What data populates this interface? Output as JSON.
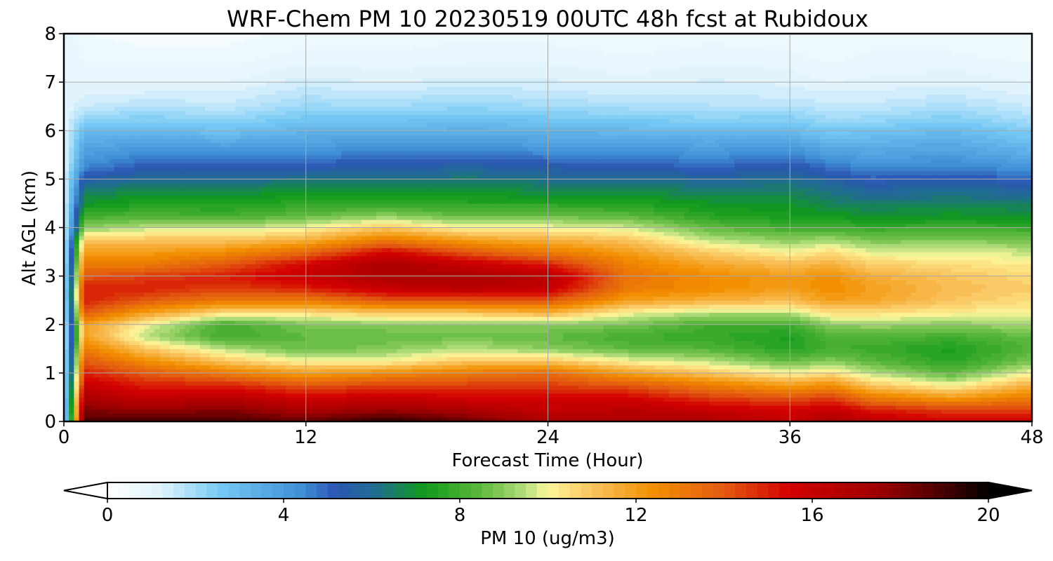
{
  "chart_data": {
    "type": "heatmap",
    "title": "WRF-Chem PM 10  20230519 00UTC 48h fcst at Rubidoux",
    "xlabel": "Forecast Time (Hour)",
    "ylabel": "Alt AGL (km)",
    "xlim": [
      0,
      48
    ],
    "ylim": [
      0,
      8
    ],
    "xticks": [
      "0",
      "12",
      "24",
      "36",
      "48"
    ],
    "yticks": [
      "0",
      "1",
      "2",
      "3",
      "4",
      "5",
      "6",
      "7",
      "8"
    ],
    "grid": true,
    "x_hours": [
      0,
      1,
      4,
      8,
      12,
      16,
      20,
      24,
      28,
      32,
      36,
      38,
      40,
      44,
      48
    ],
    "altitudes_km": [
      0,
      0.25,
      0.5,
      0.75,
      1.0,
      1.25,
      1.5,
      1.75,
      2.0,
      2.25,
      2.5,
      2.75,
      3.0,
      3.25,
      3.5,
      3.75,
      4.0,
      4.25,
      4.5,
      4.75,
      5.0,
      5.25,
      5.5,
      5.75,
      6.0,
      6.25,
      6.5,
      6.75,
      7.0,
      7.25,
      7.5,
      7.75,
      8.0
    ],
    "pm10_profiles": [
      [
        1,
        1,
        1,
        1,
        1,
        1,
        1,
        1,
        1,
        1,
        1,
        1,
        1,
        1,
        1,
        1,
        1,
        1,
        1,
        1,
        1,
        1,
        1,
        1,
        1,
        1,
        1,
        1,
        1,
        1,
        1,
        1,
        1
      ],
      [
        19,
        18,
        17,
        16,
        15,
        14,
        13,
        12,
        12,
        14,
        15,
        15,
        14,
        13,
        12,
        11,
        9,
        8,
        7,
        6.5,
        5.5,
        4.5,
        4,
        3.5,
        3,
        2.2,
        1.5,
        1.2,
        1,
        0.8,
        0.7,
        0.6,
        0.5
      ],
      [
        19,
        17.5,
        16,
        15,
        14,
        12.5,
        11,
        9.5,
        10,
        12,
        14,
        15,
        14.5,
        13,
        12,
        11,
        9.5,
        8.2,
        7.5,
        6.8,
        6,
        5.2,
        4.5,
        3.8,
        3,
        2.4,
        1.8,
        1.3,
        1,
        0.8,
        0.6,
        0.5,
        0.4
      ],
      [
        19,
        18,
        16.5,
        15,
        13,
        11,
        9.5,
        8,
        8,
        10.5,
        13,
        14.5,
        15,
        14,
        12.5,
        11,
        9.5,
        8,
        7.4,
        6.8,
        6,
        5.2,
        4.4,
        3.6,
        2.8,
        2.2,
        1.6,
        1.3,
        1,
        0.8,
        0.6,
        0.5,
        0.4
      ],
      [
        18.5,
        17,
        15.5,
        14,
        12,
        10,
        8.5,
        8.5,
        8.8,
        10.5,
        13,
        15,
        16,
        15.5,
        13.5,
        11.5,
        10,
        8.5,
        7.7,
        7,
        6.2,
        5.3,
        4.5,
        3.8,
        3.2,
        2.6,
        2.1,
        1.7,
        1.4,
        1.1,
        0.9,
        0.7,
        0.6
      ],
      [
        19.5,
        17.5,
        16,
        14.5,
        12.5,
        10,
        9,
        8.5,
        9,
        11,
        14,
        16,
        17,
        17,
        15.5,
        13,
        11,
        9,
        7.8,
        7,
        6.2,
        5.5,
        4.8,
        4,
        3.2,
        2.6,
        2,
        1.6,
        1.2,
        1,
        0.8,
        0.7,
        0.6
      ],
      [
        18.5,
        17,
        15.5,
        14.5,
        13,
        11,
        9.5,
        8.7,
        9,
        11,
        14,
        16.5,
        17,
        16,
        14,
        12,
        10,
        8.5,
        7.6,
        7,
        6.4,
        5.7,
        4.8,
        4,
        3.4,
        2.8,
        2.2,
        1.8,
        1.4,
        1.1,
        0.9,
        0.8,
        0.7
      ],
      [
        17,
        16,
        15.5,
        14.5,
        13.5,
        11,
        9,
        8.5,
        9,
        11.5,
        14,
        16,
        16.5,
        15,
        13,
        11.5,
        10,
        8.6,
        7.6,
        6.8,
        6.1,
        5.4,
        4.6,
        3.8,
        3.2,
        2.6,
        2,
        1.6,
        1.3,
        1.1,
        0.9,
        0.8,
        0.6
      ],
      [
        17,
        16.5,
        15.5,
        14,
        12,
        10,
        8.5,
        8,
        8.8,
        10,
        12,
        13,
        13.2,
        12.8,
        12,
        11,
        9.7,
        8.4,
        7.5,
        6.8,
        6.1,
        5.3,
        4.5,
        3.8,
        3.1,
        2.5,
        1.9,
        1.5,
        1.2,
        0.9,
        0.8,
        0.6,
        0.5
      ],
      [
        17,
        16,
        14.5,
        13,
        11,
        9.5,
        8.3,
        7.8,
        8,
        9.5,
        11.5,
        12.5,
        12.5,
        11.8,
        10.8,
        9.5,
        8.5,
        7.6,
        7.1,
        6.5,
        5.8,
        5,
        4.3,
        3.6,
        2.9,
        2.3,
        1.8,
        1.5,
        1.3,
        1.1,
        0.9,
        0.8,
        0.6
      ],
      [
        16,
        15.5,
        14,
        12,
        10,
        8.5,
        7.6,
        7.4,
        8,
        9.5,
        11.2,
        12,
        12,
        11.2,
        10,
        9,
        8,
        7.3,
        7,
        6.6,
        6,
        5.4,
        4.6,
        3.8,
        3,
        2.4,
        1.8,
        1.4,
        1.2,
        1,
        0.8,
        0.7,
        0.6
      ],
      [
        17,
        16,
        14.5,
        12.5,
        10.5,
        9,
        8,
        8.2,
        9,
        10.5,
        12,
        12.5,
        12.4,
        11.5,
        10.5,
        9.3,
        8,
        7.2,
        6.6,
        6.2,
        5.6,
        4.8,
        4,
        3.2,
        2.6,
        2,
        1.6,
        1.3,
        1,
        0.8,
        0.7,
        0.6,
        0.5
      ],
      [
        16.5,
        15,
        13,
        11,
        9.5,
        8.4,
        7.9,
        8.3,
        9.2,
        10.5,
        11.8,
        12,
        11.6,
        10.8,
        9.8,
        8.8,
        7.8,
        7,
        6.4,
        5.8,
        5.1,
        4.4,
        3.8,
        3.3,
        2.7,
        2.1,
        1.6,
        1.3,
        1.1,
        0.9,
        0.8,
        0.7,
        0.6
      ],
      [
        15.5,
        14.5,
        12,
        10,
        8.4,
        7.6,
        7.4,
        8,
        9,
        10.2,
        11,
        11.2,
        11,
        10.5,
        9.8,
        8.9,
        8,
        7.1,
        6.6,
        6,
        5.3,
        4.6,
        4,
        3.5,
        3,
        2.4,
        1.9,
        1.5,
        1.2,
        1,
        0.8,
        0.7,
        0.6
      ],
      [
        15.5,
        14.5,
        13,
        11.5,
        10,
        8.8,
        8.3,
        8.5,
        9.3,
        10,
        10.5,
        10.8,
        10.6,
        10.2,
        9.6,
        8.8,
        7.8,
        7,
        6.4,
        5.8,
        5,
        4.2,
        3.5,
        2.9,
        2.4,
        1.9,
        1.5,
        1.2,
        1,
        0.8,
        0.7,
        0.6,
        0.5
      ]
    ],
    "colorbar": {
      "label": "PM 10  (ug/m3)",
      "range": [
        0,
        20
      ],
      "ticks": [
        "0",
        "4",
        "8",
        "12",
        "16",
        "20"
      ],
      "extend": "both",
      "stops": [
        {
          "v": 0,
          "c": "#ffffff"
        },
        {
          "v": 1.2,
          "c": "#dff3fd"
        },
        {
          "v": 2.6,
          "c": "#74c8f4"
        },
        {
          "v": 4.4,
          "c": "#3f8fd6"
        },
        {
          "v": 5.2,
          "c": "#2c56b4"
        },
        {
          "v": 6.1,
          "c": "#1f6e8e"
        },
        {
          "v": 7.2,
          "c": "#109a1a"
        },
        {
          "v": 8.5,
          "c": "#60b93e"
        },
        {
          "v": 9.5,
          "c": "#b7df7e"
        },
        {
          "v": 10.0,
          "c": "#fdf79a"
        },
        {
          "v": 11.0,
          "c": "#f9c45e"
        },
        {
          "v": 12.4,
          "c": "#f28f00"
        },
        {
          "v": 14.0,
          "c": "#e25a10"
        },
        {
          "v": 15.5,
          "c": "#d30000"
        },
        {
          "v": 17.5,
          "c": "#9e0000"
        },
        {
          "v": 19.2,
          "c": "#3a0000"
        },
        {
          "v": 20,
          "c": "#000000"
        }
      ]
    }
  }
}
